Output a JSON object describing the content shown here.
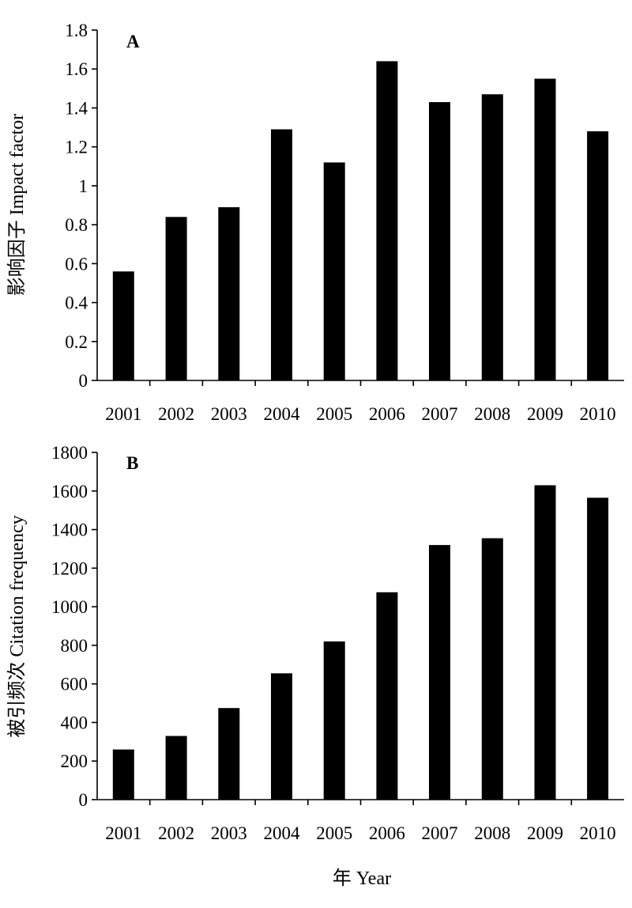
{
  "colors": {
    "bar": "#000000",
    "axis": "#000000",
    "background": "#ffffff"
  },
  "x_axis_title": "年 Year",
  "chart_data": [
    {
      "type": "bar",
      "panel_label": "A",
      "categories": [
        "2001",
        "2002",
        "2003",
        "2004",
        "2005",
        "2006",
        "2007",
        "2008",
        "2009",
        "2010"
      ],
      "values": [
        0.56,
        0.84,
        0.89,
        1.29,
        1.12,
        1.64,
        1.43,
        1.47,
        1.55,
        1.28
      ],
      "ylabel": "影响因子 Impact factor",
      "ylim": [
        0,
        1.8
      ],
      "yticks": [
        0,
        0.2,
        0.4,
        0.6,
        0.8,
        1,
        1.2,
        1.4,
        1.6,
        1.8
      ],
      "ytick_labels": [
        "0",
        "0.2",
        "0.4",
        "0.6",
        "0.8",
        "1",
        "1.2",
        "1.4",
        "1.6",
        "1.8"
      ],
      "grid": false,
      "legend": false
    },
    {
      "type": "bar",
      "panel_label": "B",
      "categories": [
        "2001",
        "2002",
        "2003",
        "2004",
        "2005",
        "2006",
        "2007",
        "2008",
        "2009",
        "2010"
      ],
      "values": [
        260,
        330,
        475,
        655,
        820,
        1075,
        1320,
        1355,
        1630,
        1565
      ],
      "ylabel": "被引频次 Citation frequency",
      "ylim": [
        0,
        1800
      ],
      "yticks": [
        0,
        200,
        400,
        600,
        800,
        1000,
        1200,
        1400,
        1600,
        1800
      ],
      "ytick_labels": [
        "0",
        "200",
        "400",
        "600",
        "800",
        "1000",
        "1200",
        "1400",
        "1600",
        "1800"
      ],
      "grid": false,
      "legend": false
    }
  ]
}
